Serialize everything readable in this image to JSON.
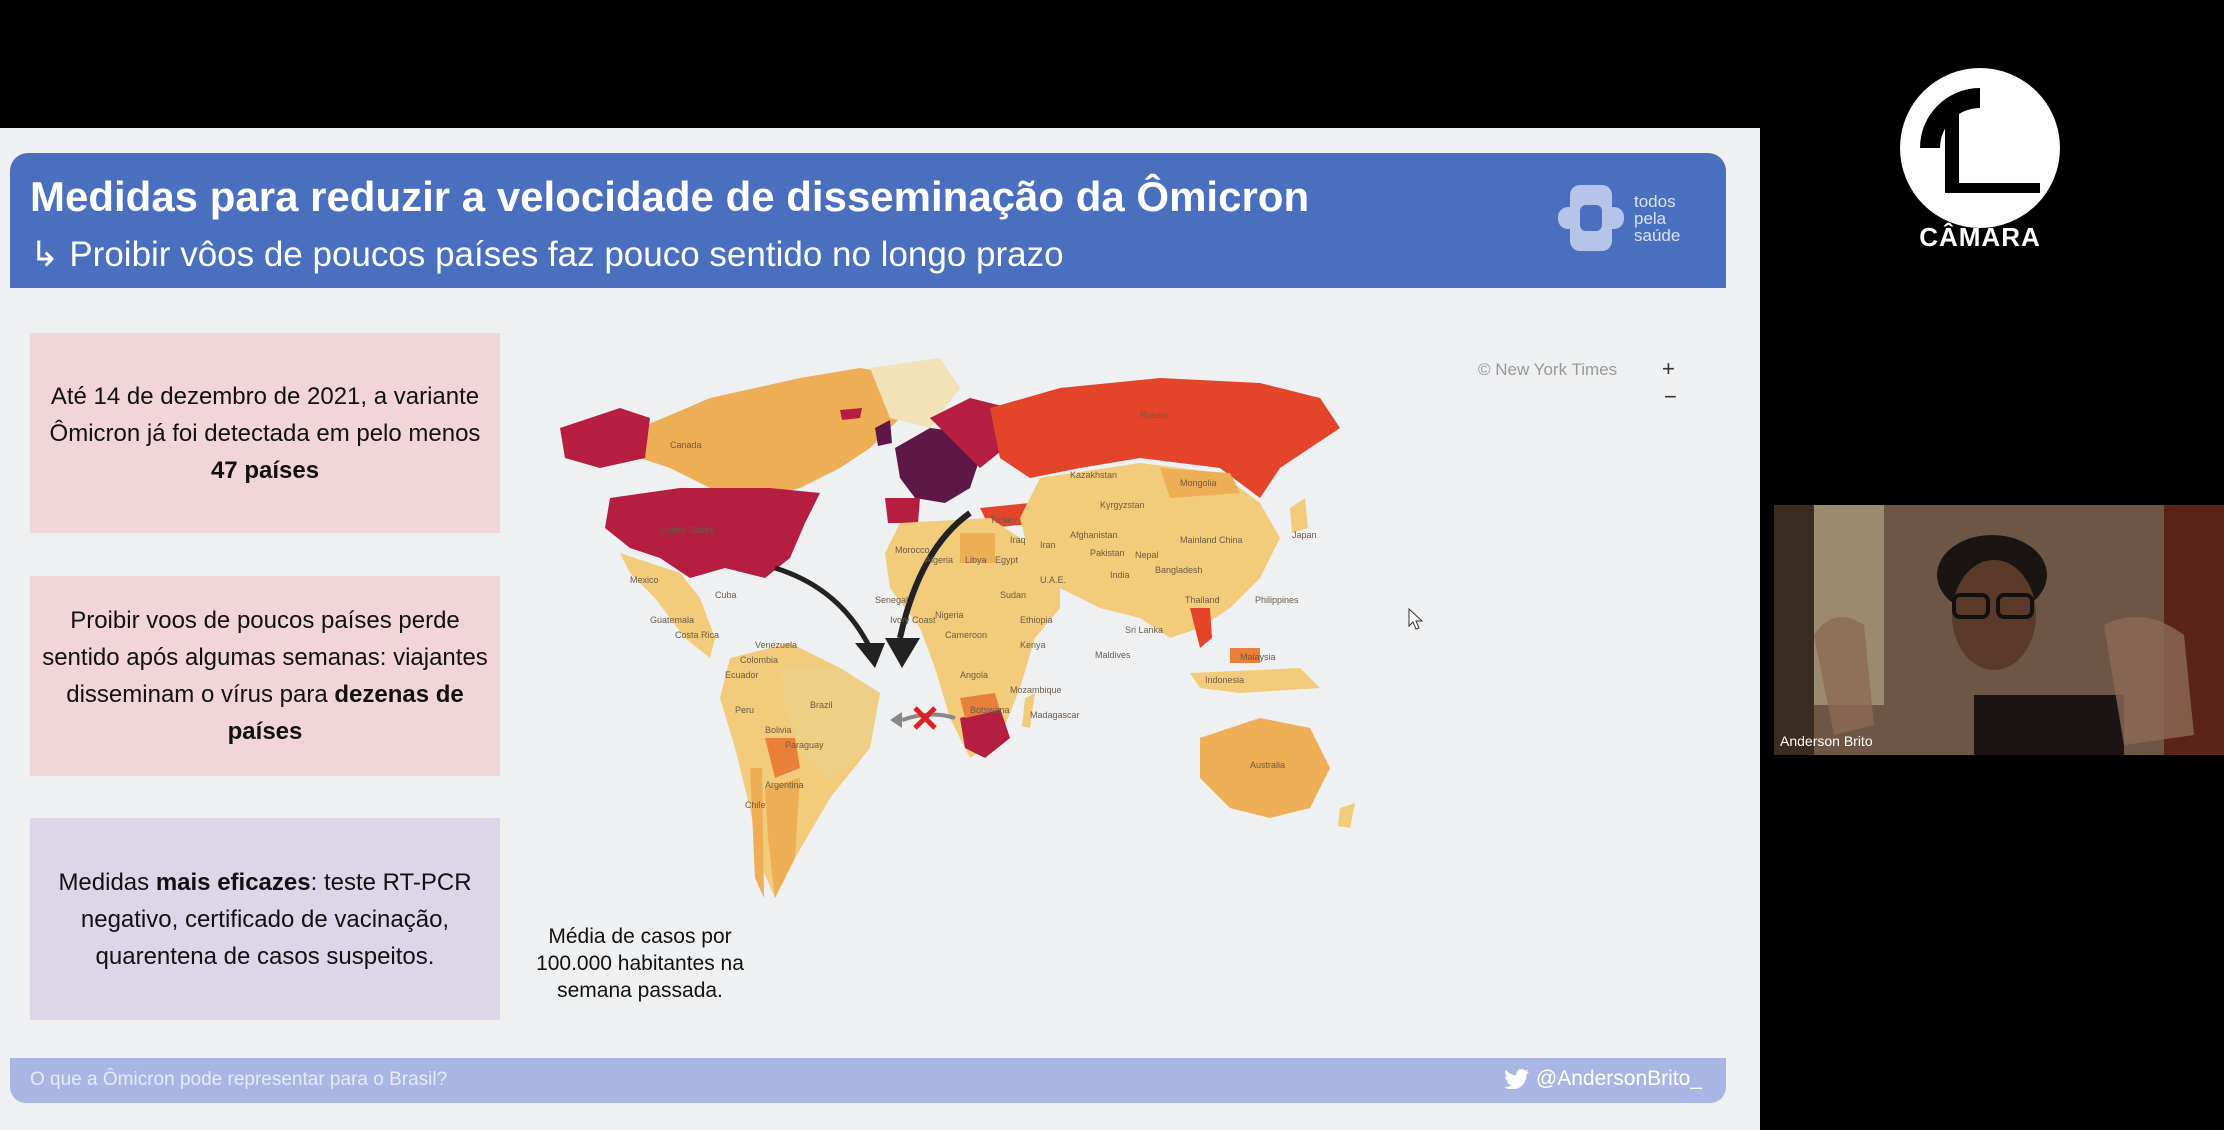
{
  "slide": {
    "title": "Medidas para reduzir a velocidade de disseminação da Ômicron",
    "subtitle_arrow": "↳",
    "subtitle": "Proibir vôos de poucos países faz pouco sentido no longo prazo",
    "logo_text": [
      "todos",
      "pela",
      "saúde"
    ],
    "boxes": [
      {
        "text_before": "Até 14 de dezembro de 2021, a variante Ômicron já foi detectada em pelo menos ",
        "bold": "47 países",
        "text_after": ""
      },
      {
        "text_before": "Proibir voos de poucos países perde sentido após algumas semanas: viajantes disseminam o vírus para ",
        "bold": "dezenas de países",
        "text_after": ""
      },
      {
        "text_before": "Medidas ",
        "bold": "mais eficazes",
        "text_after": ": teste RT-PCR negativo, certificado de vacinação, quarentena de casos suspeitos."
      }
    ],
    "map": {
      "copyright": "© New York Times",
      "zoom_in": "+",
      "zoom_out": "−",
      "legend": "Média de casos por 100.000 habitantes na semana passada.",
      "country_labels": [
        "Canada",
        "United States",
        "Mexico",
        "Cuba",
        "Guatemala",
        "Costa Rica",
        "Venezuela",
        "Colombia",
        "Ecuador",
        "Peru",
        "Brazil",
        "Bolivia",
        "Paraguay",
        "Argentina",
        "Chile",
        "Russia",
        "Kazakhstan",
        "Kyrgyzstan",
        "Mongolia",
        "Afghanistan",
        "Iran",
        "Iraq",
        "Turkey",
        "Pakistan",
        "Nepal",
        "India",
        "Bangladesh",
        "Mainland China",
        "Japan",
        "Thailand",
        "Philippines",
        "Malaysia",
        "Indonesia",
        "Sri Lanka",
        "Maldives",
        "U.A.E.",
        "Morocco",
        "Algeria",
        "Libya",
        "Egypt",
        "Sudan",
        "Ethiopia",
        "Senegal",
        "Ivory Coast",
        "Nigeria",
        "Cameroon",
        "Kenya",
        "Angola",
        "Mozambique",
        "Madagascar",
        "Botswana",
        "Australia"
      ],
      "colors": {
        "lightest": "#f2cc7a",
        "light": "#eeae55",
        "mid": "#e9803a",
        "high": "#e4452a",
        "higher": "#b51e40",
        "highest": "#5e1848"
      }
    },
    "footer_question": "O que a Ômicron pode representar para o Brasil?",
    "footer_handle": "@AndersonBrito_"
  },
  "broadcast": {
    "channel": "CÂMARA"
  },
  "video": {
    "speaker_name": "Anderson Brito"
  }
}
